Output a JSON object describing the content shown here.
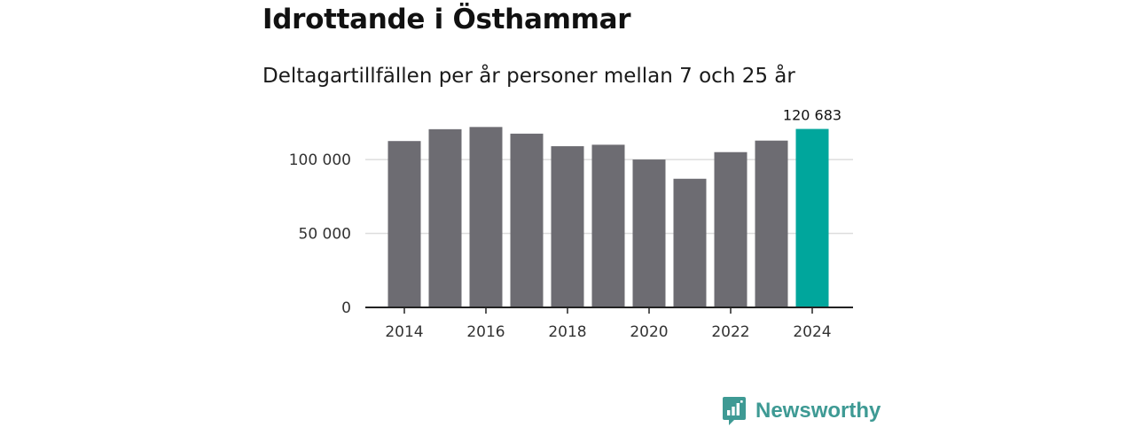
{
  "chart_data": {
    "type": "bar",
    "title": "Idrottande i Östhammar",
    "subtitle": "Deltagartillfällen per år personer mellan 7 och 25 år",
    "categories": [
      "2014",
      "2015",
      "2016",
      "2017",
      "2018",
      "2019",
      "2020",
      "2021",
      "2022",
      "2023",
      "2024"
    ],
    "values": [
      112500,
      120500,
      122000,
      117500,
      109000,
      110000,
      100000,
      87000,
      105000,
      112800,
      120683
    ],
    "highlight_index": 10,
    "highlight_label": "120 683",
    "x_tick_labels": [
      "2014",
      "2016",
      "2018",
      "2020",
      "2022",
      "2024"
    ],
    "y_ticks": [
      0,
      50000,
      100000
    ],
    "y_tick_labels": [
      "0",
      "50 000",
      "100 000"
    ],
    "ylim": [
      0,
      130000
    ],
    "grid": true,
    "legend": "none",
    "colors": {
      "bar": "#6d6c72",
      "highlight": "#00a69c",
      "grid": "#dddddd",
      "axis": "#222222"
    }
  },
  "brand": {
    "name": "Newsworthy",
    "icon": "bar-chart-speech-bubble-icon",
    "color": "#3e9a94"
  }
}
